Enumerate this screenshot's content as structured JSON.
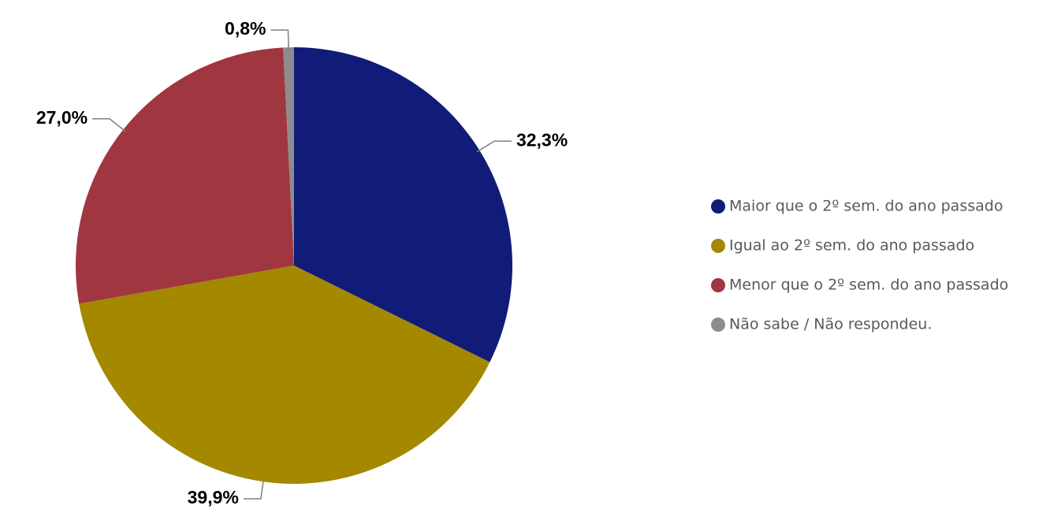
{
  "chart_data": {
    "type": "pie",
    "categories": [
      "Maior que o 2º sem. do ano passado",
      "Igual ao 2º sem. do ano passado",
      "Menor que o 2º sem. do ano passado",
      "Não sabe / Não respondeu."
    ],
    "values": [
      32.3,
      39.9,
      27.0,
      0.8
    ],
    "value_labels": [
      "32,3%",
      "39,9%",
      "27,0%",
      "0,8%"
    ],
    "colors": [
      "#111b78",
      "#a38800",
      "#a03640",
      "#8c8c8c"
    ],
    "legend": "right"
  }
}
